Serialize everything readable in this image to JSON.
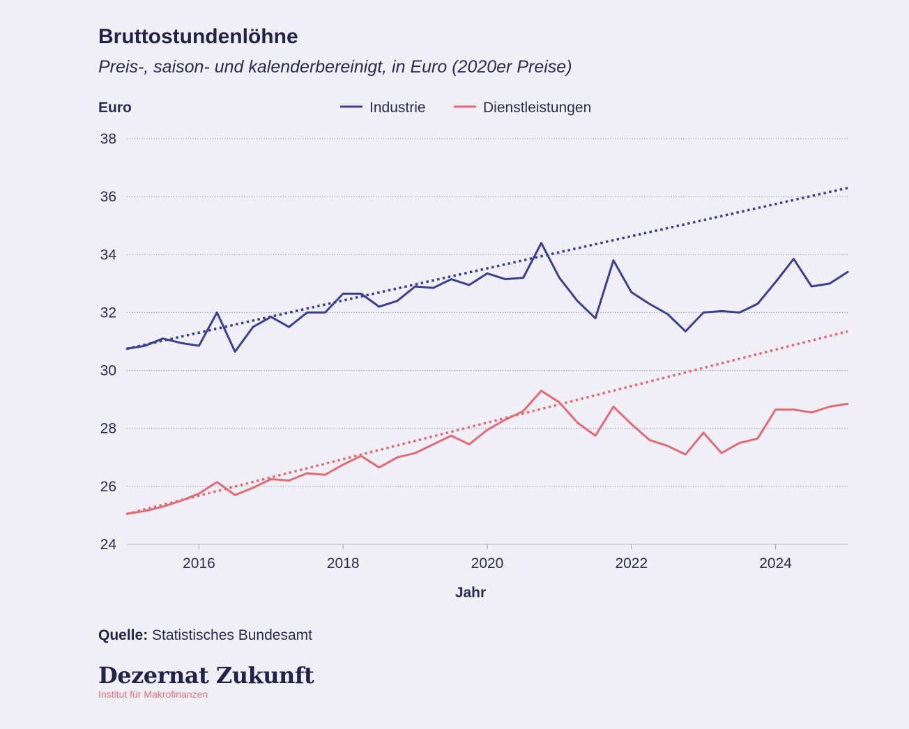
{
  "header": {
    "title": "Bruttostundenlöhne",
    "subtitle": "Preis-, saison- und kalenderbereinigt, in Euro (2020er Preise)"
  },
  "footer": {
    "source_label": "Quelle:",
    "source_text": "Statistisches Bundesamt",
    "brand_name": "Dezernat Zukunft",
    "brand_sub": "Institut für Makrofinanzen"
  },
  "colors": {
    "industrie": "#3b3f91",
    "dienstleistungen": "#e06b78",
    "grid": "#9a9aa8",
    "background": "#f0eff5"
  },
  "chart_data": {
    "type": "line",
    "title": "Bruttostundenlöhne",
    "subtitle": "Preis-, saison- und kalenderbereinigt, in Euro (2020er Preise)",
    "ylabel": "Euro",
    "xlabel": "Jahr",
    "xlim": [
      2015.0,
      2025.0
    ],
    "ylim": [
      24,
      38
    ],
    "y_ticks": [
      24,
      26,
      28,
      30,
      32,
      34,
      36,
      38
    ],
    "x_ticks": [
      2016,
      2018,
      2020,
      2022,
      2024
    ],
    "x_tick_labels": [
      "2016",
      "2018",
      "2020",
      "2022",
      "2024"
    ],
    "y_tick_labels": [
      "24",
      "26",
      "28",
      "30",
      "32",
      "34",
      "36",
      "38"
    ],
    "grid": "horizontal dotted",
    "legend_position": "top-center",
    "x": [
      2015.0,
      2015.25,
      2015.5,
      2015.75,
      2016.0,
      2016.25,
      2016.5,
      2016.75,
      2017.0,
      2017.25,
      2017.5,
      2017.75,
      2018.0,
      2018.25,
      2018.5,
      2018.75,
      2019.0,
      2019.25,
      2019.5,
      2019.75,
      2020.0,
      2020.25,
      2020.5,
      2020.75,
      2021.0,
      2021.25,
      2021.5,
      2021.75,
      2022.0,
      2022.25,
      2022.5,
      2022.75,
      2023.0,
      2023.25,
      2023.5,
      2023.75,
      2024.0,
      2024.25,
      2024.5,
      2024.75,
      2025.0
    ],
    "series": [
      {
        "name": "Industrie",
        "values": [
          30.75,
          30.85,
          31.1,
          30.95,
          30.85,
          32.0,
          30.65,
          31.5,
          31.85,
          31.5,
          32.0,
          32.0,
          32.65,
          32.65,
          32.2,
          32.4,
          32.9,
          32.85,
          33.15,
          32.95,
          33.35,
          33.15,
          33.2,
          34.4,
          33.2,
          32.4,
          31.8,
          33.8,
          32.7,
          32.3,
          31.95,
          31.35,
          32.0,
          32.05,
          32.0,
          32.3,
          33.05,
          33.85,
          32.9,
          33.0,
          33.4
        ]
      },
      {
        "name": "Dienstleistungen",
        "values": [
          25.05,
          25.15,
          25.3,
          25.5,
          25.75,
          26.15,
          25.7,
          25.95,
          26.25,
          26.2,
          26.45,
          26.4,
          26.75,
          27.05,
          26.65,
          27.0,
          27.15,
          27.45,
          27.75,
          27.45,
          27.95,
          28.3,
          28.6,
          29.3,
          28.9,
          28.2,
          27.75,
          28.75,
          28.15,
          27.6,
          27.4,
          27.1,
          27.85,
          27.15,
          27.5,
          27.65,
          28.65,
          28.65,
          28.55,
          28.75,
          28.85
        ]
      }
    ],
    "trends": [
      {
        "series": "Industrie",
        "x": [
          2015.0,
          2025.0
        ],
        "values": [
          30.75,
          36.3
        ]
      },
      {
        "series": "Dienstleistungen",
        "x": [
          2015.0,
          2025.0
        ],
        "values": [
          25.05,
          31.35
        ]
      }
    ]
  }
}
